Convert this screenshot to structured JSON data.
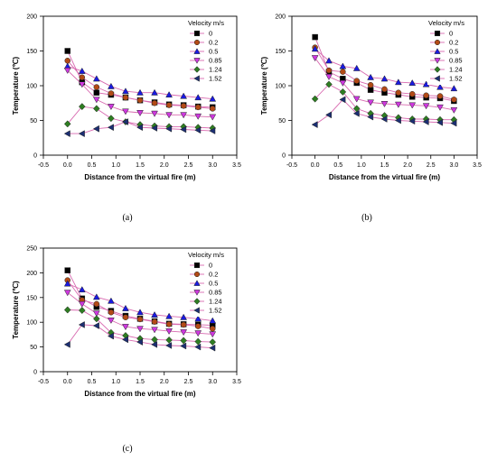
{
  "chart_data": [
    {
      "type": "line",
      "panel_label": "(a)",
      "xlabel": "Distance from the virtual fire (m)",
      "ylabel": "Temperature (℃)",
      "xlim": [
        -0.5,
        3.5
      ],
      "ylim": [
        0,
        200
      ],
      "xticks": [
        "-0.5",
        "0.0",
        "0.5",
        "1.0",
        "1.5",
        "2.0",
        "2.5",
        "3.0",
        "3.5"
      ],
      "yticks": [
        "0",
        "50",
        "100",
        "150",
        "200"
      ],
      "legend_title": "Velocity m/s",
      "legend_placement": "top-right",
      "grid": false,
      "x": [
        0,
        0.3,
        0.6,
        0.9,
        1.2,
        1.5,
        1.8,
        2.1,
        2.4,
        2.7,
        3.0
      ],
      "series": [
        {
          "name": "0",
          "values": [
            150,
            105,
            90,
            87,
            83,
            79,
            76,
            73,
            72,
            70,
            69
          ]
        },
        {
          "name": "0.2",
          "values": [
            136,
            112,
            98,
            89,
            83,
            79,
            75,
            72,
            71,
            69,
            67
          ]
        },
        {
          "name": "0.5",
          "values": [
            128,
            121,
            110,
            99,
            92,
            90,
            90,
            87,
            85,
            83,
            81
          ]
        },
        {
          "name": "0.85",
          "values": [
            122,
            102,
            80,
            70,
            63,
            61,
            60,
            58,
            58,
            56,
            55
          ]
        },
        {
          "name": "1.24",
          "values": [
            45,
            70,
            67,
            53,
            48,
            44,
            42,
            41,
            41,
            40,
            39
          ]
        },
        {
          "name": "1.52",
          "values": [
            31,
            31,
            38,
            40,
            48,
            40,
            39,
            38,
            37,
            36,
            35
          ]
        }
      ]
    },
    {
      "type": "line",
      "panel_label": "(b)",
      "xlabel": "Distance from the virtual fire (m)",
      "ylabel": "Temperature (℃)",
      "xlim": [
        -0.5,
        3.5
      ],
      "ylim": [
        0,
        200
      ],
      "xticks": [
        "-0.5",
        "0.0",
        "0.5",
        "1.0",
        "1.5",
        "2.0",
        "2.5",
        "3.0",
        "3.5"
      ],
      "yticks": [
        "0",
        "50",
        "100",
        "150",
        "200"
      ],
      "legend_title": "Velocity m/s",
      "legend_placement": "top-right",
      "grid": false,
      "x": [
        0,
        0.3,
        0.6,
        0.9,
        1.2,
        1.5,
        1.8,
        2.1,
        2.4,
        2.7,
        3.0
      ],
      "series": [
        {
          "name": "0",
          "values": [
            170,
            120,
            110,
            104,
            94,
            90,
            87,
            84,
            83,
            82,
            78
          ]
        },
        {
          "name": "0.2",
          "values": [
            155,
            122,
            120,
            107,
            101,
            95,
            90,
            88,
            86,
            85,
            80
          ]
        },
        {
          "name": "0.5",
          "values": [
            153,
            136,
            128,
            125,
            112,
            110,
            105,
            104,
            102,
            98,
            96
          ]
        },
        {
          "name": "0.85",
          "values": [
            140,
            113,
            104,
            81,
            76,
            74,
            73,
            72,
            71,
            69,
            65
          ]
        },
        {
          "name": "1.24",
          "values": [
            81,
            102,
            91,
            67,
            60,
            57,
            54,
            52,
            52,
            51,
            51
          ]
        },
        {
          "name": "1.52",
          "values": [
            44,
            58,
            80,
            60,
            55,
            52,
            50,
            49,
            48,
            47,
            46
          ]
        }
      ]
    },
    {
      "type": "line",
      "panel_label": "(c)",
      "xlabel": "Distance from the virtual fire (m)",
      "ylabel": "Temperature (℃)",
      "xlim": [
        -0.5,
        3.5
      ],
      "ylim": [
        0,
        250
      ],
      "xticks": [
        "-0.5",
        "0.0",
        "0.5",
        "1.0",
        "1.5",
        "2.0",
        "2.5",
        "3.0",
        "3.5"
      ],
      "yticks": [
        "0",
        "50",
        "100",
        "150",
        "200",
        "250"
      ],
      "legend_title": "Velocity m/s",
      "legend_placement": "top-right",
      "grid": false,
      "x": [
        0,
        0.3,
        0.6,
        0.9,
        1.2,
        1.5,
        1.8,
        2.1,
        2.4,
        2.7,
        3.0
      ],
      "series": [
        {
          "name": "0",
          "values": [
            205,
            148,
            131,
            123,
            113,
            107,
            102,
            97,
            96,
            95,
            94
          ]
        },
        {
          "name": "0.2",
          "values": [
            185,
            145,
            137,
            120,
            110,
            106,
            101,
            96,
            95,
            92,
            87
          ]
        },
        {
          "name": "0.5",
          "values": [
            178,
            166,
            151,
            143,
            128,
            120,
            115,
            112,
            110,
            107,
            103
          ]
        },
        {
          "name": "0.85",
          "values": [
            160,
            137,
            118,
            104,
            91,
            87,
            85,
            82,
            80,
            78,
            76
          ]
        },
        {
          "name": "1.24",
          "values": [
            125,
            124,
            107,
            79,
            73,
            67,
            65,
            64,
            63,
            61,
            60
          ]
        },
        {
          "name": "1.52",
          "values": [
            55,
            95,
            93,
            72,
            65,
            60,
            55,
            53,
            52,
            50,
            48
          ]
        }
      ]
    }
  ],
  "series_styles": [
    {
      "color": "#000000",
      "marker": "square"
    },
    {
      "color": "#b34a16",
      "marker": "circle"
    },
    {
      "color": "#1a1ae0",
      "marker": "triangle-up"
    },
    {
      "color": "#cf38e0",
      "marker": "triangle-down"
    },
    {
      "color": "#2e7d22",
      "marker": "diamond"
    },
    {
      "color": "#1c2f73",
      "marker": "triangle-left"
    }
  ],
  "line_color": "#d86ab0"
}
